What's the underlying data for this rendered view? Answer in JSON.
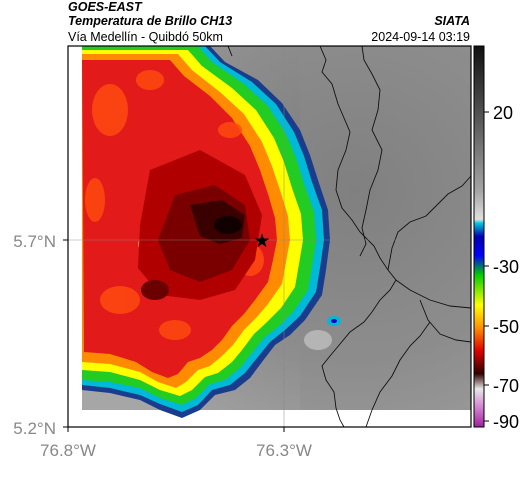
{
  "header": {
    "source": "GOES-EAST",
    "product": "Temperatura de Brillo CH13",
    "region": "Vía Medellín - Quibdó 50km",
    "agency": "SIATA",
    "timestamp": "2024-09-14 03:19"
  },
  "map": {
    "x_ticks": [
      "76.8°W",
      "76.3°W"
    ],
    "y_ticks": [
      "5.7°N",
      "5.2°N"
    ],
    "marker_icon": "star-icon",
    "gridlines": true
  },
  "colorbar": {
    "ticks": [
      "20",
      "-30",
      "-50",
      "-70",
      "-90"
    ],
    "colors": [
      "#1a1a1a",
      "#555555",
      "#9a9a9a",
      "#d8d8d8",
      "#00b8d8",
      "#0000c0",
      "#00cc00",
      "#ffff00",
      "#ff8000",
      "#e00000",
      "#400000",
      "#e0e0e0",
      "#c040c0"
    ]
  }
}
